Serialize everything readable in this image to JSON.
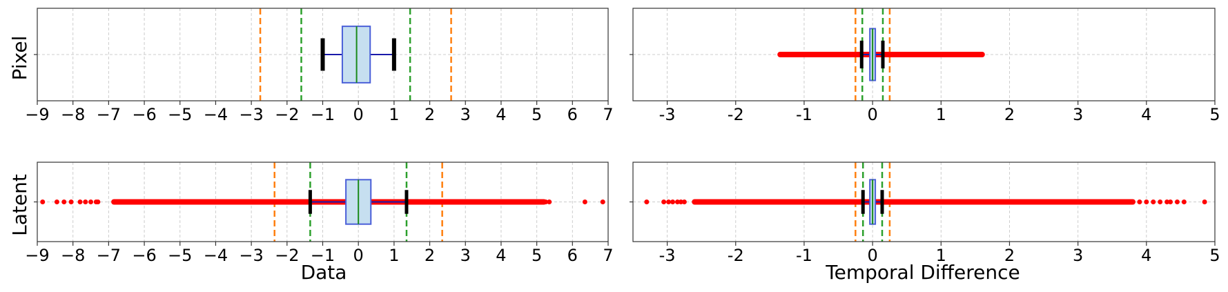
{
  "chart_data": [
    {
      "type": "boxplot",
      "panel": "pixel-data",
      "ylabel": "Pixel",
      "xlabel": "",
      "xlim": [
        -9,
        7
      ],
      "xticks": [
        -9,
        -8,
        -7,
        -6,
        -5,
        -4,
        -3,
        -2,
        -1,
        0,
        1,
        2,
        3,
        4,
        5,
        6,
        7
      ],
      "xtick_labels": [
        "−9",
        "−8",
        "−7",
        "−6",
        "−5",
        "−4",
        "−3",
        "−2",
        "−1",
        "0",
        "1",
        "2",
        "3",
        "4",
        "5",
        "6",
        "7"
      ],
      "grid": true,
      "box": {
        "q1": -0.45,
        "median": -0.05,
        "q3": 0.33,
        "whisker_low": -1.0,
        "whisker_high": 1.0
      },
      "outliers": {
        "range": null,
        "sparse": []
      },
      "vlines": [
        {
          "x": -2.75,
          "color": "#ff7f0e"
        },
        {
          "x": 2.6,
          "color": "#ff7f0e"
        },
        {
          "x": -1.6,
          "color": "#2ca02c"
        },
        {
          "x": 1.45,
          "color": "#2ca02c"
        }
      ]
    },
    {
      "type": "boxplot",
      "panel": "pixel-temporal",
      "ylabel": "",
      "xlabel": "",
      "xlim": [
        -3.5,
        5
      ],
      "xticks": [
        -3,
        -2,
        -1,
        0,
        1,
        2,
        3,
        4,
        5
      ],
      "xtick_labels": [
        "-3",
        "-2",
        "-1",
        "0",
        "1",
        "2",
        "3",
        "4",
        "5"
      ],
      "grid": true,
      "box": {
        "q1": -0.04,
        "median": 0.0,
        "q3": 0.04,
        "whisker_low": -0.16,
        "whisker_high": 0.15
      },
      "outliers": {
        "range": [
          -1.35,
          1.6
        ],
        "sparse": []
      },
      "vlines": [
        {
          "x": -0.25,
          "color": "#ff7f0e"
        },
        {
          "x": 0.25,
          "color": "#ff7f0e"
        },
        {
          "x": -0.15,
          "color": "#2ca02c"
        },
        {
          "x": 0.15,
          "color": "#2ca02c"
        }
      ]
    },
    {
      "type": "boxplot",
      "panel": "latent-data",
      "ylabel": "Latent",
      "xlabel": "Data",
      "xlim": [
        -9,
        7
      ],
      "xticks": [
        -9,
        -8,
        -7,
        -6,
        -5,
        -4,
        -3,
        -2,
        -1,
        0,
        1,
        2,
        3,
        4,
        5,
        6,
        7
      ],
      "xtick_labels": [
        "−9",
        "−8",
        "−7",
        "−6",
        "−5",
        "−4",
        "−3",
        "−2",
        "−1",
        "0",
        "1",
        "2",
        "3",
        "4",
        "5",
        "6",
        "7"
      ],
      "grid": true,
      "box": {
        "q1": -0.35,
        "median": 0.0,
        "q3": 0.35,
        "whisker_low": -1.35,
        "whisker_high": 1.35
      },
      "outliers": {
        "range": [
          -6.85,
          5.2
        ],
        "sparse": [
          -8.85,
          -8.45,
          -8.25,
          -8.05,
          -7.8,
          -7.65,
          -7.5,
          -7.35,
          -7.3,
          5.25,
          5.35,
          6.35,
          6.85
        ]
      },
      "vlines": [
        {
          "x": -2.35,
          "color": "#ff7f0e"
        },
        {
          "x": 2.35,
          "color": "#ff7f0e"
        },
        {
          "x": -1.35,
          "color": "#2ca02c"
        },
        {
          "x": 1.35,
          "color": "#2ca02c"
        }
      ]
    },
    {
      "type": "boxplot",
      "panel": "latent-temporal",
      "ylabel": "",
      "xlabel": "Temporal Difference",
      "xlim": [
        -3.5,
        5
      ],
      "xticks": [
        -3,
        -2,
        -1,
        0,
        1,
        2,
        3,
        4,
        5
      ],
      "xtick_labels": [
        "-3",
        "-2",
        "-1",
        "0",
        "1",
        "2",
        "3",
        "4",
        "5"
      ],
      "grid": true,
      "box": {
        "q1": -0.04,
        "median": 0.0,
        "q3": 0.04,
        "whisker_low": -0.14,
        "whisker_high": 0.14
      },
      "outliers": {
        "range": [
          -2.6,
          3.8
        ],
        "sparse": [
          -3.3,
          -3.05,
          -2.98,
          -2.92,
          -2.85,
          -2.8,
          -2.75,
          3.9,
          4.0,
          4.1,
          4.2,
          4.3,
          4.35,
          4.45,
          4.55,
          4.85
        ]
      },
      "vlines": [
        {
          "x": -0.25,
          "color": "#ff7f0e"
        },
        {
          "x": 0.25,
          "color": "#ff7f0e"
        },
        {
          "x": -0.14,
          "color": "#2ca02c"
        },
        {
          "x": 0.14,
          "color": "#2ca02c"
        }
      ]
    }
  ],
  "colors": {
    "box_fill": "#c6dff0",
    "box_edge": "#4a5fd8",
    "median": "#1a8a1a",
    "whisker": "#1a1aaa",
    "cap": "#000000",
    "outlier": "#ff0000",
    "grid": "#cccccc"
  }
}
